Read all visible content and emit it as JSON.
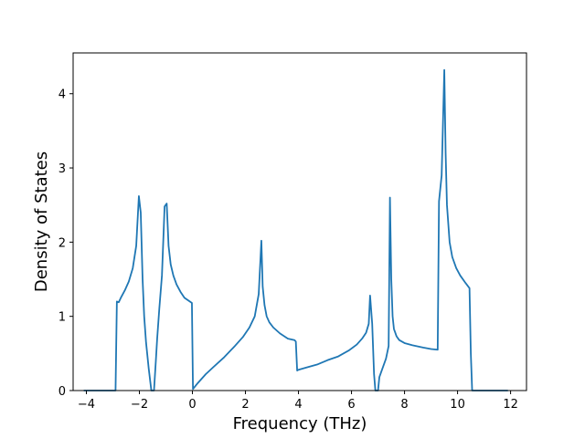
{
  "chart_data": {
    "type": "line",
    "title": "",
    "xlabel": "Frequency (THz)",
    "ylabel": "Density of States",
    "xlim": [
      -4.5,
      12.6
    ],
    "ylim": [
      0,
      4.55
    ],
    "xticks": [
      -4,
      -2,
      0,
      2,
      4,
      6,
      8,
      10,
      12
    ],
    "yticks": [
      0,
      1,
      2,
      3,
      4
    ],
    "grid": false,
    "series": [
      {
        "name": "",
        "color": "#1f77b4",
        "x": [
          -4.1,
          -2.9,
          -2.85,
          -2.78,
          -2.7,
          -2.55,
          -2.4,
          -2.25,
          -2.12,
          -2.02,
          -1.95,
          -1.88,
          -1.82,
          -1.75,
          -1.65,
          -1.55,
          -1.45,
          -1.38,
          -1.33,
          -1.25,
          -1.15,
          -1.05,
          -0.97,
          -0.9,
          -0.82,
          -0.72,
          -0.6,
          -0.45,
          -0.3,
          -0.1,
          -0.02,
          0.02,
          0.2,
          0.5,
          0.8,
          1.2,
          1.6,
          1.9,
          2.15,
          2.35,
          2.5,
          2.6,
          2.65,
          2.72,
          2.8,
          2.9,
          3.05,
          3.3,
          3.6,
          3.85,
          3.9,
          3.95,
          4.0,
          4.3,
          4.7,
          5.1,
          5.5,
          5.9,
          6.2,
          6.4,
          6.55,
          6.65,
          6.7,
          6.78,
          6.85,
          6.9,
          7.0,
          7.05,
          7.15,
          7.3,
          7.4,
          7.45,
          7.5,
          7.55,
          7.6,
          7.65,
          7.7,
          7.8,
          8.0,
          8.3,
          8.7,
          9.0,
          9.25,
          9.3,
          9.4,
          9.5,
          9.55,
          9.6,
          9.7,
          9.8,
          9.95,
          10.1,
          10.3,
          10.45,
          10.5,
          10.55,
          11.0,
          11.6,
          11.9
        ],
        "y": [
          0,
          0,
          1.2,
          1.19,
          1.25,
          1.35,
          1.47,
          1.65,
          1.95,
          2.62,
          2.4,
          1.5,
          1.0,
          0.65,
          0.3,
          0.0,
          0.0,
          0.4,
          0.7,
          1.1,
          1.55,
          2.48,
          2.52,
          1.95,
          1.7,
          1.55,
          1.43,
          1.33,
          1.25,
          1.2,
          1.18,
          0.02,
          0.1,
          0.22,
          0.32,
          0.45,
          0.6,
          0.72,
          0.85,
          1.0,
          1.3,
          2.02,
          1.4,
          1.15,
          1.0,
          0.92,
          0.85,
          0.77,
          0.7,
          0.68,
          0.66,
          0.27,
          0.28,
          0.31,
          0.35,
          0.41,
          0.46,
          0.54,
          0.62,
          0.7,
          0.78,
          0.9,
          1.28,
          0.9,
          0.22,
          0.0,
          0.0,
          0.18,
          0.28,
          0.43,
          0.6,
          2.6,
          1.5,
          1.0,
          0.83,
          0.78,
          0.73,
          0.68,
          0.64,
          0.61,
          0.58,
          0.56,
          0.55,
          2.55,
          2.9,
          4.32,
          3.2,
          2.5,
          2.0,
          1.8,
          1.65,
          1.55,
          1.45,
          1.38,
          0.5,
          0.0,
          0.0,
          0.0,
          0.0
        ]
      }
    ]
  }
}
